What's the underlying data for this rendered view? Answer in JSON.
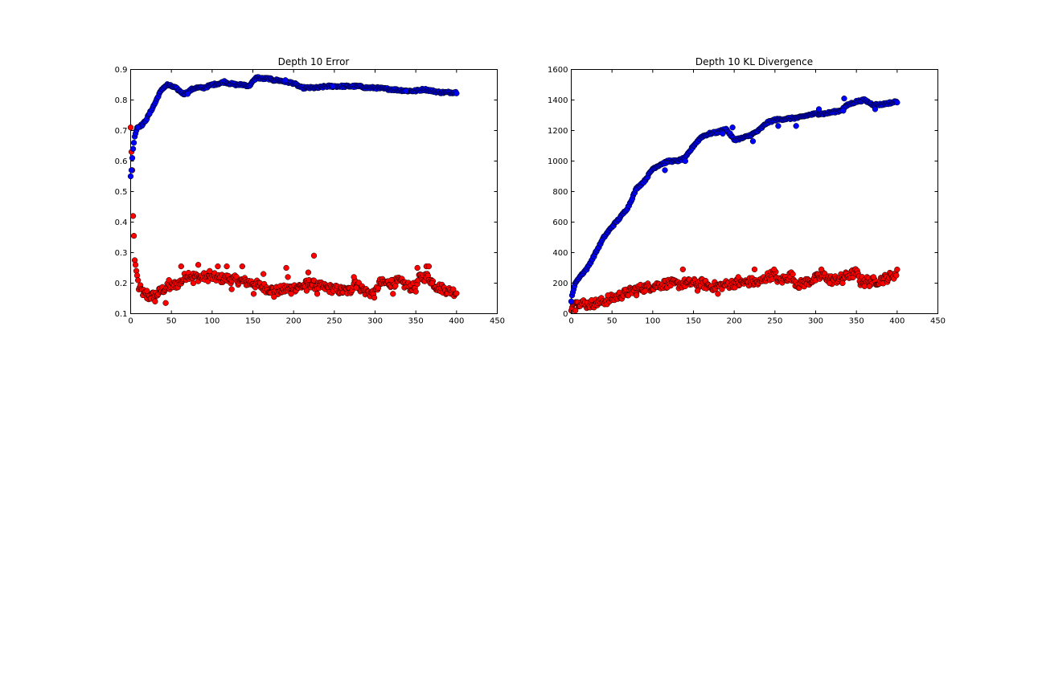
{
  "chart_data": [
    {
      "type": "scatter",
      "title": "Depth 10 Error",
      "xlabel": "",
      "ylabel": "",
      "xlim": [
        0,
        450
      ],
      "ylim": [
        0.1,
        0.9
      ],
      "x_ticks": [
        "0",
        "50",
        "100",
        "150",
        "200",
        "250",
        "300",
        "350",
        "400",
        "450"
      ],
      "y_ticks": [
        "0.1",
        "0.2",
        "0.3",
        "0.4",
        "0.5",
        "0.6",
        "0.7",
        "0.8",
        "0.9"
      ],
      "grid": false,
      "legend": "none",
      "x_range": [
        0,
        400
      ],
      "series": [
        {
          "color": "#0000ff",
          "anchors": [
            [
              0,
              0.55
            ],
            [
              1,
              0.57
            ],
            [
              2,
              0.61
            ],
            [
              3,
              0.64
            ],
            [
              4,
              0.66
            ],
            [
              5,
              0.68
            ],
            [
              8,
              0.71
            ],
            [
              15,
              0.72
            ],
            [
              20,
              0.74
            ],
            [
              30,
              0.79
            ],
            [
              35,
              0.82
            ],
            [
              40,
              0.84
            ],
            [
              45,
              0.85
            ],
            [
              50,
              0.845
            ],
            [
              55,
              0.84
            ],
            [
              60,
              0.83
            ],
            [
              65,
              0.82
            ],
            [
              70,
              0.825
            ],
            [
              75,
              0.835
            ],
            [
              80,
              0.84
            ],
            [
              90,
              0.84
            ],
            [
              100,
              0.85
            ],
            [
              110,
              0.855
            ],
            [
              115,
              0.86
            ],
            [
              120,
              0.855
            ],
            [
              130,
              0.85
            ],
            [
              140,
              0.85
            ],
            [
              145,
              0.845
            ],
            [
              150,
              0.86
            ],
            [
              155,
              0.875
            ],
            [
              160,
              0.87
            ],
            [
              170,
              0.87
            ],
            [
              175,
              0.865
            ],
            [
              180,
              0.865
            ],
            [
              190,
              0.86
            ],
            [
              200,
              0.855
            ],
            [
              210,
              0.84
            ],
            [
              220,
              0.84
            ],
            [
              230,
              0.84
            ],
            [
              240,
              0.845
            ],
            [
              250,
              0.845
            ],
            [
              260,
              0.845
            ],
            [
              270,
              0.845
            ],
            [
              280,
              0.845
            ],
            [
              290,
              0.84
            ],
            [
              300,
              0.84
            ],
            [
              320,
              0.835
            ],
            [
              340,
              0.83
            ],
            [
              350,
              0.83
            ],
            [
              360,
              0.835
            ],
            [
              380,
              0.825
            ],
            [
              400,
              0.825
            ]
          ],
          "spikes": [
            [
              9,
              0.71
            ],
            [
              23,
              0.755
            ],
            [
              70,
              0.82
            ],
            [
              190,
              0.865
            ],
            [
              248,
              0.845
            ],
            [
              338,
              0.83
            ]
          ]
        },
        {
          "color": "#ff0000",
          "anchors": [
            [
              0,
              0.71
            ],
            [
              1,
              0.63
            ],
            [
              2,
              0.57
            ],
            [
              3,
              0.42
            ],
            [
              4,
              0.355
            ],
            [
              5,
              0.275
            ],
            [
              6,
              0.26
            ],
            [
              7,
              0.24
            ],
            [
              8,
              0.225
            ],
            [
              10,
              0.185
            ],
            [
              15,
              0.17
            ],
            [
              20,
              0.155
            ],
            [
              30,
              0.16
            ],
            [
              40,
              0.18
            ],
            [
              50,
              0.19
            ],
            [
              60,
              0.2
            ],
            [
              70,
              0.23
            ],
            [
              80,
              0.22
            ],
            [
              90,
              0.22
            ],
            [
              100,
              0.22
            ],
            [
              110,
              0.215
            ],
            [
              120,
              0.215
            ],
            [
              130,
              0.21
            ],
            [
              140,
              0.205
            ],
            [
              150,
              0.2
            ],
            [
              160,
              0.19
            ],
            [
              170,
              0.18
            ],
            [
              180,
              0.175
            ],
            [
              190,
              0.18
            ],
            [
              200,
              0.185
            ],
            [
              210,
              0.19
            ],
            [
              220,
              0.2
            ],
            [
              230,
              0.19
            ],
            [
              240,
              0.185
            ],
            [
              250,
              0.18
            ],
            [
              260,
              0.175
            ],
            [
              270,
              0.175
            ],
            [
              275,
              0.21
            ],
            [
              280,
              0.19
            ],
            [
              290,
              0.17
            ],
            [
              300,
              0.165
            ],
            [
              305,
              0.2
            ],
            [
              320,
              0.2
            ],
            [
              330,
              0.205
            ],
            [
              340,
              0.19
            ],
            [
              350,
              0.185
            ],
            [
              355,
              0.22
            ],
            [
              365,
              0.22
            ],
            [
              375,
              0.19
            ],
            [
              390,
              0.175
            ],
            [
              400,
              0.17
            ]
          ],
          "spikes": [
            [
              20,
              0.175
            ],
            [
              30,
              0.14
            ],
            [
              43,
              0.135
            ],
            [
              47,
              0.21
            ],
            [
              62,
              0.255
            ],
            [
              77,
              0.2
            ],
            [
              83,
              0.26
            ],
            [
              97,
              0.24
            ],
            [
              107,
              0.255
            ],
            [
              118,
              0.255
            ],
            [
              124,
              0.18
            ],
            [
              137,
              0.255
            ],
            [
              151,
              0.165
            ],
            [
              163,
              0.23
            ],
            [
              176,
              0.155
            ],
            [
              191,
              0.25
            ],
            [
              193,
              0.22
            ],
            [
              197,
              0.165
            ],
            [
              216,
              0.175
            ],
            [
              218,
              0.235
            ],
            [
              225,
              0.29
            ],
            [
              229,
              0.165
            ],
            [
              274,
              0.22
            ],
            [
              277,
              0.185
            ],
            [
              320,
              0.21
            ],
            [
              322,
              0.165
            ],
            [
              352,
              0.25
            ],
            [
              363,
              0.255
            ],
            [
              366,
              0.255
            ],
            [
              370,
              0.2
            ]
          ]
        }
      ]
    },
    {
      "type": "scatter",
      "title": "Depth 10 KL Divergence",
      "xlabel": "",
      "ylabel": "",
      "xlim": [
        0,
        450
      ],
      "ylim": [
        0,
        1600
      ],
      "x_ticks": [
        "0",
        "50",
        "100",
        "150",
        "200",
        "250",
        "300",
        "350",
        "400",
        "450"
      ],
      "y_ticks": [
        "0",
        "200",
        "400",
        "600",
        "800",
        "1000",
        "1200",
        "1400",
        "1600"
      ],
      "grid": false,
      "legend": "none",
      "x_range": [
        0,
        400
      ],
      "series": [
        {
          "color": "#0000ff",
          "anchors": [
            [
              0,
              80
            ],
            [
              1,
              120
            ],
            [
              3,
              160
            ],
            [
              5,
              200
            ],
            [
              10,
              240
            ],
            [
              20,
              300
            ],
            [
              30,
              400
            ],
            [
              40,
              500
            ],
            [
              50,
              570
            ],
            [
              60,
              630
            ],
            [
              70,
              700
            ],
            [
              80,
              820
            ],
            [
              90,
              870
            ],
            [
              100,
              950
            ],
            [
              110,
              980
            ],
            [
              120,
              1000
            ],
            [
              130,
              1000
            ],
            [
              140,
              1020
            ],
            [
              150,
              1100
            ],
            [
              160,
              1160
            ],
            [
              170,
              1180
            ],
            [
              180,
              1190
            ],
            [
              190,
              1210
            ],
            [
              200,
              1140
            ],
            [
              210,
              1150
            ],
            [
              220,
              1170
            ],
            [
              230,
              1200
            ],
            [
              240,
              1250
            ],
            [
              250,
              1270
            ],
            [
              260,
              1275
            ],
            [
              270,
              1280
            ],
            [
              280,
              1285
            ],
            [
              290,
              1300
            ],
            [
              300,
              1310
            ],
            [
              310,
              1310
            ],
            [
              320,
              1320
            ],
            [
              330,
              1330
            ],
            [
              340,
              1370
            ],
            [
              350,
              1390
            ],
            [
              360,
              1400
            ],
            [
              370,
              1370
            ],
            [
              380,
              1370
            ],
            [
              400,
              1390
            ]
          ],
          "spikes": [
            [
              115,
              940
            ],
            [
              140,
              1000
            ],
            [
              186,
              1180
            ],
            [
              198,
              1220
            ],
            [
              223,
              1130
            ],
            [
              254,
              1230
            ],
            [
              276,
              1230
            ],
            [
              304,
              1340
            ],
            [
              334,
              1330
            ],
            [
              335,
              1410
            ],
            [
              373,
              1340
            ]
          ]
        },
        {
          "color": "#ff0000",
          "anchors": [
            [
              0,
              20
            ],
            [
              2,
              60
            ],
            [
              5,
              75
            ],
            [
              10,
              75
            ],
            [
              20,
              60
            ],
            [
              30,
              70
            ],
            [
              40,
              80
            ],
            [
              50,
              100
            ],
            [
              60,
              120
            ],
            [
              70,
              140
            ],
            [
              80,
              160
            ],
            [
              90,
              170
            ],
            [
              100,
              180
            ],
            [
              110,
              190
            ],
            [
              120,
              200
            ],
            [
              130,
              190
            ],
            [
              140,
              200
            ],
            [
              150,
              200
            ],
            [
              160,
              200
            ],
            [
              170,
              180
            ],
            [
              180,
              180
            ],
            [
              190,
              190
            ],
            [
              200,
              200
            ],
            [
              210,
              200
            ],
            [
              220,
              210
            ],
            [
              230,
              200
            ],
            [
              240,
              240
            ],
            [
              250,
              260
            ],
            [
              255,
              210
            ],
            [
              262,
              230
            ],
            [
              270,
              250
            ],
            [
              275,
              210
            ],
            [
              280,
              190
            ],
            [
              290,
              210
            ],
            [
              300,
              230
            ],
            [
              310,
              250
            ],
            [
              320,
              220
            ],
            [
              330,
              230
            ],
            [
              340,
              250
            ],
            [
              350,
              270
            ],
            [
              355,
              210
            ],
            [
              360,
              220
            ],
            [
              370,
              210
            ],
            [
              380,
              220
            ],
            [
              390,
              240
            ],
            [
              400,
              265
            ]
          ],
          "spikes": [
            [
              5,
              20
            ],
            [
              45,
              120
            ],
            [
              80,
              120
            ],
            [
              137,
              290
            ],
            [
              155,
              150
            ],
            [
              180,
              130
            ],
            [
              205,
              240
            ],
            [
              225,
              290
            ],
            [
              249,
              290
            ],
            [
              307,
              290
            ],
            [
              317,
              200
            ],
            [
              333,
              200
            ],
            [
              360,
              180
            ],
            [
              366,
              180
            ],
            [
              371,
              240
            ]
          ]
        }
      ]
    }
  ]
}
